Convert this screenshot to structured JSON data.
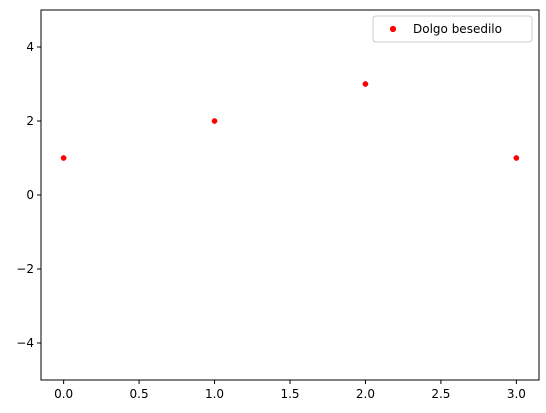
{
  "chart_data": {
    "type": "scatter",
    "title": "",
    "xlabel": "",
    "ylabel": "",
    "xlim": [
      -0.15,
      3.15
    ],
    "ylim": [
      -5,
      5
    ],
    "xticks": [
      0.0,
      0.5,
      1.0,
      1.5,
      2.0,
      2.5,
      3.0
    ],
    "xtick_labels": [
      "0.0",
      "0.5",
      "1.0",
      "1.5",
      "2.0",
      "2.5",
      "3.0"
    ],
    "yticks": [
      -4,
      -2,
      0,
      2,
      4
    ],
    "ytick_labels": [
      "−4",
      "−2",
      "0",
      "2",
      "4"
    ],
    "grid": false,
    "legend_position": "top-right",
    "series": [
      {
        "name": "Dolgo besedilo",
        "color": "#ff0000",
        "marker": "circle",
        "x": [
          0,
          1,
          2,
          3
        ],
        "y": [
          1,
          2,
          3,
          1
        ]
      }
    ]
  }
}
